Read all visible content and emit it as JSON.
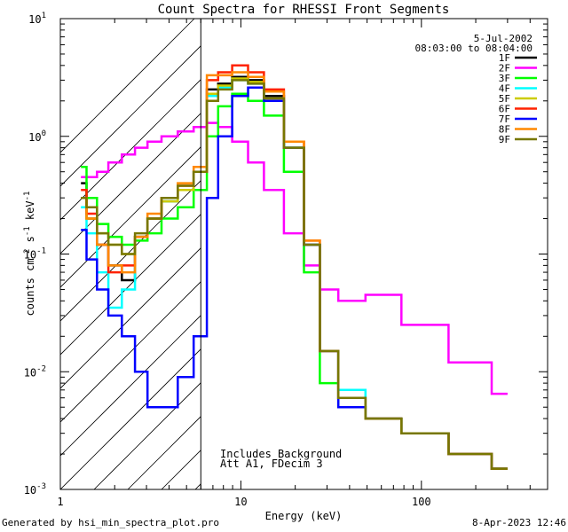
{
  "chart_data": {
    "type": "line",
    "title": "Count Spectra for RHESSI Front Segments",
    "xlabel": "Energy (keV)",
    "ylabel_parts": {
      "base": "counts cm",
      "exp1": "-2",
      "mid1": " s",
      "exp2": "-1",
      "mid2": " keV",
      "exp3": "-1"
    },
    "x_scale": "log",
    "y_scale": "log",
    "xlim": [
      1,
      500
    ],
    "ylim": [
      0.001,
      10
    ],
    "x_ticks": [
      {
        "v": 1,
        "label": "1"
      },
      {
        "v": 10,
        "label": "10"
      },
      {
        "v": 100,
        "label": "100"
      }
    ],
    "y_ticks": [
      {
        "v": 0.001,
        "base": "10",
        "exp": "-3"
      },
      {
        "v": 0.01,
        "base": "10",
        "exp": "-2"
      },
      {
        "v": 0.1,
        "base": "10",
        "exp": "-1"
      },
      {
        "v": 1,
        "base": "10",
        "exp": "0"
      },
      {
        "v": 10,
        "base": "10",
        "exp": "1"
      }
    ],
    "hatched_region": {
      "x_from": 1,
      "x_to": 6
    },
    "legend": {
      "placement": "top-right",
      "date": "5-Jul-2002",
      "time_range": "08:03:00 to 08:04:00"
    },
    "annotations": [
      "Includes Background",
      "Att A1, FDecim 3"
    ],
    "series": [
      {
        "name": "1F",
        "color": "#000000",
        "energy": [
          1.3,
          1.5,
          1.7,
          2.0,
          2.4,
          2.8,
          3.3,
          4,
          5,
          6,
          7,
          8,
          10,
          12,
          15,
          20,
          25,
          30,
          40,
          60,
          100,
          200,
          300
        ],
        "counts": [
          0.4,
          0.2,
          0.12,
          0.08,
          0.06,
          0.14,
          0.2,
          0.28,
          0.35,
          0.5,
          2.5,
          2.8,
          3.2,
          3.0,
          2.2,
          0.8,
          0.12,
          0.015,
          0.006,
          0.004,
          0.003,
          0.002,
          0.0015
        ]
      },
      {
        "name": "2F",
        "color": "#ff00ff",
        "energy": [
          1.3,
          1.5,
          1.7,
          2.0,
          2.4,
          2.8,
          3.3,
          4,
          5,
          6,
          7,
          8,
          10,
          12,
          15,
          20,
          25,
          30,
          40,
          60,
          100,
          200,
          300
        ],
        "counts": [
          0.45,
          0.45,
          0.5,
          0.6,
          0.7,
          0.8,
          0.9,
          1.0,
          1.1,
          1.2,
          1.3,
          1.2,
          0.9,
          0.6,
          0.35,
          0.15,
          0.08,
          0.05,
          0.04,
          0.045,
          0.025,
          0.012,
          0.0065
        ]
      },
      {
        "name": "3F",
        "color": "#00ff00",
        "energy": [
          1.3,
          1.5,
          1.7,
          2.0,
          2.4,
          2.8,
          3.3,
          4,
          5,
          6,
          7,
          8,
          10,
          12,
          15,
          20,
          25,
          30,
          40,
          60,
          100,
          200,
          300
        ],
        "counts": [
          0.55,
          0.3,
          0.18,
          0.14,
          0.12,
          0.13,
          0.15,
          0.2,
          0.25,
          0.35,
          1.0,
          1.8,
          2.3,
          2.0,
          1.5,
          0.5,
          0.07,
          0.008,
          0.005,
          0.004,
          0.003,
          0.002,
          0.0015
        ]
      },
      {
        "name": "4F",
        "color": "#00ffff",
        "energy": [
          1.3,
          1.5,
          1.7,
          2.0,
          2.4,
          2.8,
          3.3,
          4,
          5,
          6,
          7,
          8,
          10,
          12,
          15,
          20,
          25,
          30,
          40,
          60,
          100,
          200,
          300
        ],
        "counts": [
          0.25,
          0.15,
          0.07,
          0.035,
          0.05,
          0.14,
          0.2,
          0.28,
          0.35,
          0.5,
          2.2,
          2.6,
          3.0,
          2.8,
          2.0,
          0.8,
          0.12,
          0.015,
          0.007,
          0.004,
          0.003,
          0.002,
          0.0015
        ]
      },
      {
        "name": "5F",
        "color": "#cccc00",
        "energy": [
          1.3,
          1.5,
          1.7,
          2.0,
          2.4,
          2.8,
          3.3,
          4,
          5,
          6,
          7,
          8,
          10,
          12,
          15,
          20,
          25,
          30,
          40,
          60,
          100,
          200,
          300
        ],
        "counts": [
          0.3,
          0.2,
          0.15,
          0.12,
          0.1,
          0.14,
          0.2,
          0.28,
          0.35,
          0.5,
          2.3,
          2.7,
          3.1,
          2.9,
          2.1,
          0.8,
          0.12,
          0.015,
          0.006,
          0.004,
          0.003,
          0.002,
          0.0015
        ]
      },
      {
        "name": "6F",
        "color": "#ff2200",
        "energy": [
          1.3,
          1.5,
          1.7,
          2.0,
          2.4,
          2.8,
          3.3,
          4,
          5,
          6,
          7,
          8,
          10,
          12,
          15,
          20,
          25,
          30,
          40,
          60,
          100,
          200,
          300
        ],
        "counts": [
          0.35,
          0.22,
          0.12,
          0.07,
          0.08,
          0.14,
          0.2,
          0.3,
          0.38,
          0.5,
          3.0,
          3.5,
          4.0,
          3.5,
          2.5,
          0.9,
          0.13,
          0.015,
          0.006,
          0.004,
          0.003,
          0.002,
          0.0015
        ]
      },
      {
        "name": "7F",
        "color": "#0000ff",
        "energy": [
          1.3,
          1.5,
          1.7,
          2.0,
          2.4,
          2.8,
          3.3,
          4,
          5,
          6,
          7,
          8,
          10,
          12,
          15,
          20,
          25,
          30,
          40,
          60,
          100,
          200,
          300
        ],
        "counts": [
          0.16,
          0.09,
          0.05,
          0.03,
          0.02,
          0.01,
          0.005,
          0.005,
          0.009,
          0.02,
          0.3,
          1.0,
          2.2,
          2.6,
          2.0,
          0.8,
          0.12,
          0.015,
          0.005,
          0.004,
          0.003,
          0.002,
          0.0015
        ]
      },
      {
        "name": "8F",
        "color": "#ff8800",
        "energy": [
          1.3,
          1.5,
          1.7,
          2.0,
          2.4,
          2.8,
          3.3,
          4,
          5,
          6,
          7,
          8,
          10,
          12,
          15,
          20,
          25,
          30,
          40,
          60,
          100,
          200,
          300
        ],
        "counts": [
          0.3,
          0.2,
          0.12,
          0.08,
          0.07,
          0.14,
          0.22,
          0.3,
          0.4,
          0.55,
          3.3,
          3.3,
          3.5,
          3.2,
          2.4,
          0.9,
          0.13,
          0.015,
          0.006,
          0.004,
          0.003,
          0.002,
          0.0015
        ]
      },
      {
        "name": "9F",
        "color": "#777700",
        "energy": [
          1.3,
          1.5,
          1.7,
          2.0,
          2.4,
          2.8,
          3.3,
          4,
          5,
          6,
          7,
          8,
          10,
          12,
          15,
          20,
          25,
          30,
          40,
          60,
          100,
          200,
          300
        ],
        "counts": [
          0.3,
          0.25,
          0.15,
          0.12,
          0.1,
          0.15,
          0.2,
          0.3,
          0.38,
          0.5,
          2.0,
          2.5,
          3.0,
          2.8,
          2.1,
          0.8,
          0.12,
          0.015,
          0.006,
          0.004,
          0.003,
          0.002,
          0.0015
        ]
      }
    ]
  },
  "footer": {
    "generated_by": "Generated by hsi_min_spectra_plot.pro",
    "timestamp": "8-Apr-2023 12:46"
  }
}
